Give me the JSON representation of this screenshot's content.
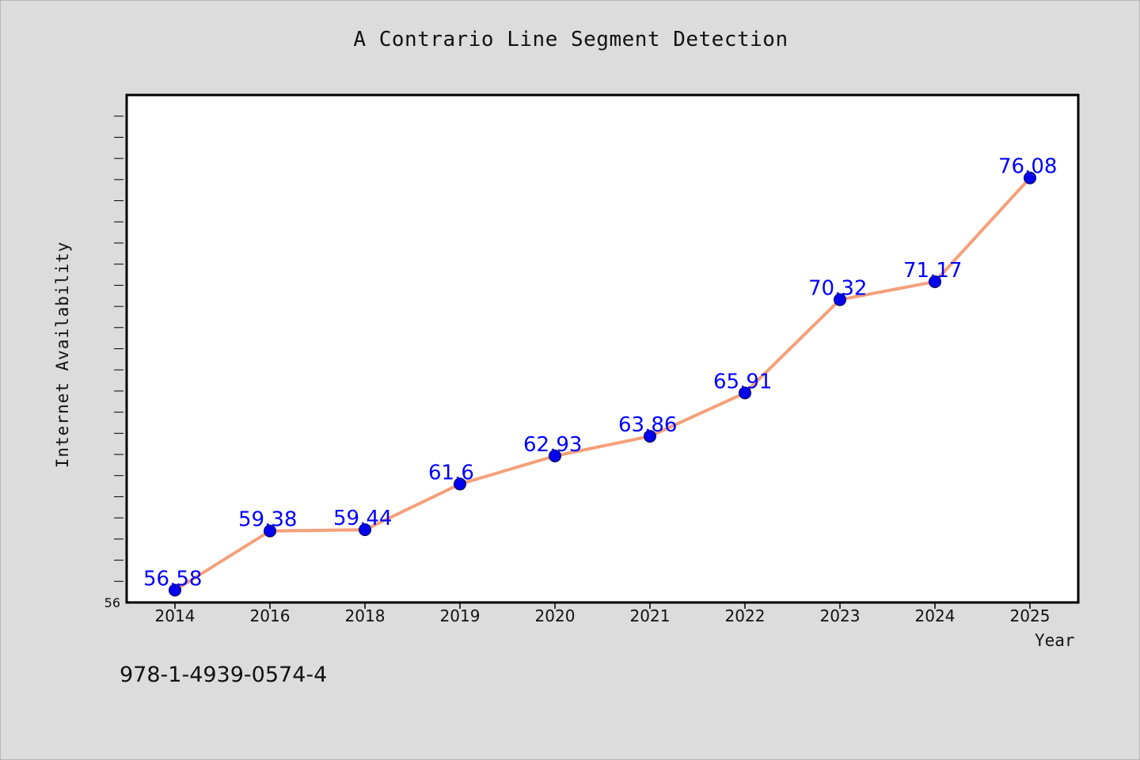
{
  "chart_data": {
    "type": "line",
    "title": "A Contrario Line Segment Detection",
    "xlabel": "Year",
    "ylabel": "Internet Availability",
    "categories": [
      "2014",
      "2016",
      "2018",
      "2019",
      "2020",
      "2021",
      "2022",
      "2023",
      "2024",
      "2025"
    ],
    "series": [
      {
        "values": [
          56.58,
          59.38,
          59.44,
          61.6,
          62.93,
          63.86,
          65.91,
          70.32,
          71.17,
          76.08
        ],
        "data_labels": [
          "56.58",
          "59.38",
          "59.44",
          "61.6",
          "62.93",
          "63.86",
          "65.91",
          "70.32",
          "71.17",
          "76.08"
        ],
        "line_color": "#f4a07a",
        "marker_color": "#0000ee",
        "label_color": "#0000ff"
      }
    ],
    "y_tick_labels": [
      "56"
    ],
    "ylim": [
      56,
      80
    ],
    "grid": false,
    "legend": "none",
    "colors": {
      "background": "#dcdcdc",
      "plot_background": "#ffffff",
      "frame": "#000000"
    }
  },
  "footer": {
    "code": "978-1-4939-0574-4"
  }
}
